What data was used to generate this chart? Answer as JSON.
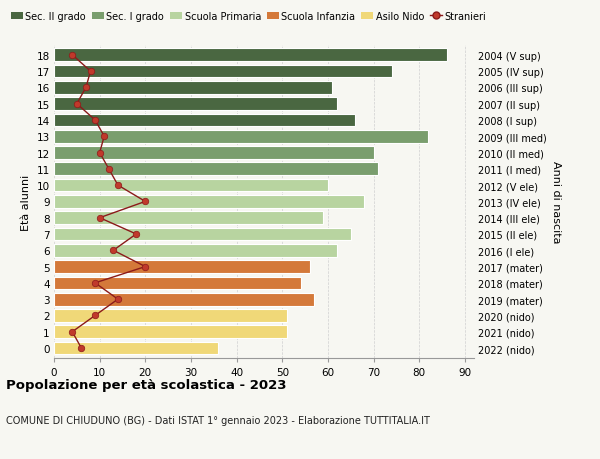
{
  "ages": [
    18,
    17,
    16,
    15,
    14,
    13,
    12,
    11,
    10,
    9,
    8,
    7,
    6,
    5,
    4,
    3,
    2,
    1,
    0
  ],
  "years": [
    "2004 (V sup)",
    "2005 (IV sup)",
    "2006 (III sup)",
    "2007 (II sup)",
    "2008 (I sup)",
    "2009 (III med)",
    "2010 (II med)",
    "2011 (I med)",
    "2012 (V ele)",
    "2013 (IV ele)",
    "2014 (III ele)",
    "2015 (II ele)",
    "2016 (I ele)",
    "2017 (mater)",
    "2018 (mater)",
    "2019 (mater)",
    "2020 (nido)",
    "2021 (nido)",
    "2022 (nido)"
  ],
  "bar_values": [
    86,
    74,
    61,
    62,
    66,
    82,
    70,
    71,
    60,
    68,
    59,
    65,
    62,
    56,
    54,
    57,
    51,
    51,
    36
  ],
  "bar_colors": [
    "#4a6741",
    "#4a6741",
    "#4a6741",
    "#4a6741",
    "#4a6741",
    "#7a9e6e",
    "#7a9e6e",
    "#7a9e6e",
    "#b8d4a0",
    "#b8d4a0",
    "#b8d4a0",
    "#b8d4a0",
    "#b8d4a0",
    "#d4793a",
    "#d4793a",
    "#d4793a",
    "#f0d878",
    "#f0d878",
    "#f0d878"
  ],
  "stranieri": [
    4,
    8,
    7,
    5,
    9,
    11,
    10,
    12,
    14,
    20,
    10,
    18,
    13,
    20,
    9,
    14,
    9,
    4,
    6
  ],
  "legend_labels": [
    "Sec. II grado",
    "Sec. I grado",
    "Scuola Primaria",
    "Scuola Infanzia",
    "Asilo Nido",
    "Stranieri"
  ],
  "legend_colors": [
    "#4a6741",
    "#7a9e6e",
    "#b8d4a0",
    "#d4793a",
    "#f0d878",
    "#b22222"
  ],
  "title": "Popolazione per età scolastica - 2023",
  "subtitle": "COMUNE DI CHIUDUNO (BG) - Dati ISTAT 1° gennaio 2023 - Elaborazione TUTTITALIA.IT",
  "ylabel_left": "Età alunni",
  "ylabel_right": "Anni di nascita",
  "xlim": [
    0,
    92
  ],
  "bg_color": "#f7f7f2",
  "grid_color": "#d0d0d0"
}
